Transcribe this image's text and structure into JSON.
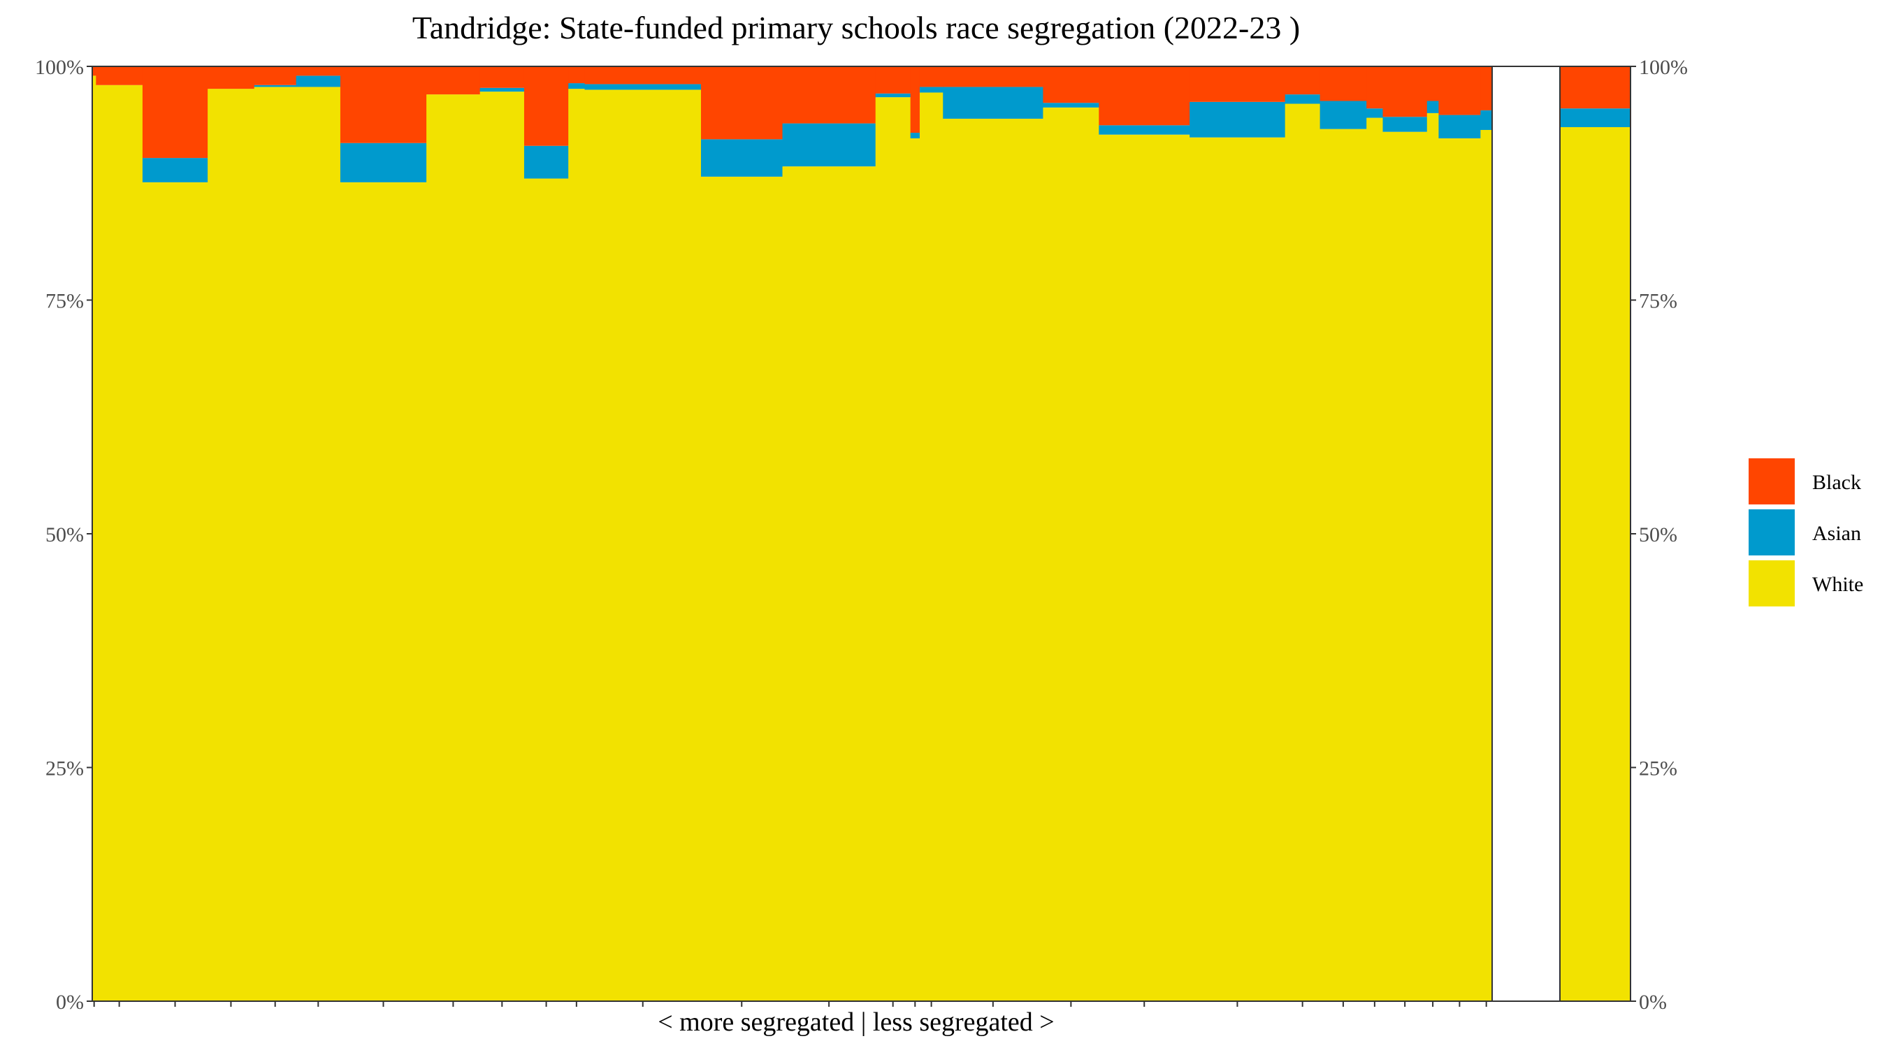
{
  "chart_data": {
    "type": "bar",
    "subtype": "stacked-variable-width (marimekko)",
    "title": "Tandridge: State-funded primary schools race segregation (2022-23 )",
    "xlabel": "< more segregated | less segregated >",
    "ylabel": "",
    "ylim": [
      0,
      100
    ],
    "y_ticks": [
      "0%",
      "25%",
      "50%",
      "75%",
      "100%"
    ],
    "y_ticks_right": [
      "0%",
      "25%",
      "50%",
      "75%",
      "100%"
    ],
    "legend_position": "right",
    "grid": false,
    "legend": [
      {
        "name": "Black",
        "color": "#FF4500"
      },
      {
        "name": "Asian",
        "color": "#009ACD"
      },
      {
        "name": "White",
        "color": "#F2E200"
      }
    ],
    "series_order": [
      "White",
      "Asian",
      "Black"
    ],
    "schools": [
      {
        "share": 0.8,
        "white": 99.0,
        "asian": 0.0,
        "black": 1.0
      },
      {
        "share": 10.0,
        "white": 98.0,
        "asian": 0.0,
        "black": 2.0
      },
      {
        "share": 14.0,
        "white": 87.6,
        "asian": 2.6,
        "black": 9.8
      },
      {
        "share": 10.0,
        "white": 97.6,
        "asian": 0.0,
        "black": 2.4
      },
      {
        "share": 9.0,
        "white": 97.8,
        "asian": 0.2,
        "black": 2.0
      },
      {
        "share": 9.5,
        "white": 97.8,
        "asian": 1.2,
        "black": 1.0
      },
      {
        "share": 18.5,
        "white": 87.6,
        "asian": 4.2,
        "black": 8.2
      },
      {
        "share": 11.5,
        "white": 97.0,
        "asian": 0.0,
        "black": 3.0
      },
      {
        "share": 9.5,
        "white": 97.3,
        "asian": 0.4,
        "black": 2.3
      },
      {
        "share": 9.5,
        "white": 88.0,
        "asian": 3.5,
        "black": 8.5
      },
      {
        "share": 3.5,
        "white": 97.6,
        "asian": 0.6,
        "black": 1.8
      },
      {
        "share": 25.0,
        "white": 97.5,
        "asian": 0.6,
        "black": 1.9
      },
      {
        "share": 17.5,
        "white": 88.2,
        "asian": 4.0,
        "black": 7.8
      },
      {
        "share": 20.0,
        "white": 89.3,
        "asian": 4.6,
        "black": 6.1
      },
      {
        "share": 7.5,
        "white": 96.7,
        "asian": 0.4,
        "black": 2.9
      },
      {
        "share": 2.0,
        "white": 92.3,
        "asian": 0.6,
        "black": 7.1
      },
      {
        "share": 5.0,
        "white": 97.2,
        "asian": 0.6,
        "black": 2.2
      },
      {
        "share": 21.5,
        "white": 94.4,
        "asian": 3.4,
        "black": 2.2
      },
      {
        "share": 12.0,
        "white": 95.6,
        "asian": 0.5,
        "black": 3.9
      },
      {
        "share": 19.5,
        "white": 92.7,
        "asian": 1.0,
        "black": 6.3
      },
      {
        "share": 20.5,
        "white": 92.4,
        "asian": 3.8,
        "black": 3.8
      },
      {
        "share": 7.5,
        "white": 96.0,
        "asian": 1.0,
        "black": 3.0
      },
      {
        "share": 10.0,
        "white": 93.3,
        "asian": 3.0,
        "black": 3.7
      },
      {
        "share": 3.5,
        "white": 94.5,
        "asian": 1.0,
        "black": 4.5
      },
      {
        "share": 9.5,
        "white": 93.0,
        "asian": 1.6,
        "black": 5.4
      },
      {
        "share": 2.5,
        "white": 95.0,
        "asian": 1.3,
        "black": 3.7
      },
      {
        "share": 9.0,
        "white": 92.3,
        "asian": 2.5,
        "black": 5.2
      },
      {
        "share": 2.5,
        "white": 93.2,
        "asian": 2.1,
        "black": 4.7
      }
    ],
    "overall": {
      "white": 93.5,
      "asian": 2.0,
      "black": 4.5
    }
  }
}
